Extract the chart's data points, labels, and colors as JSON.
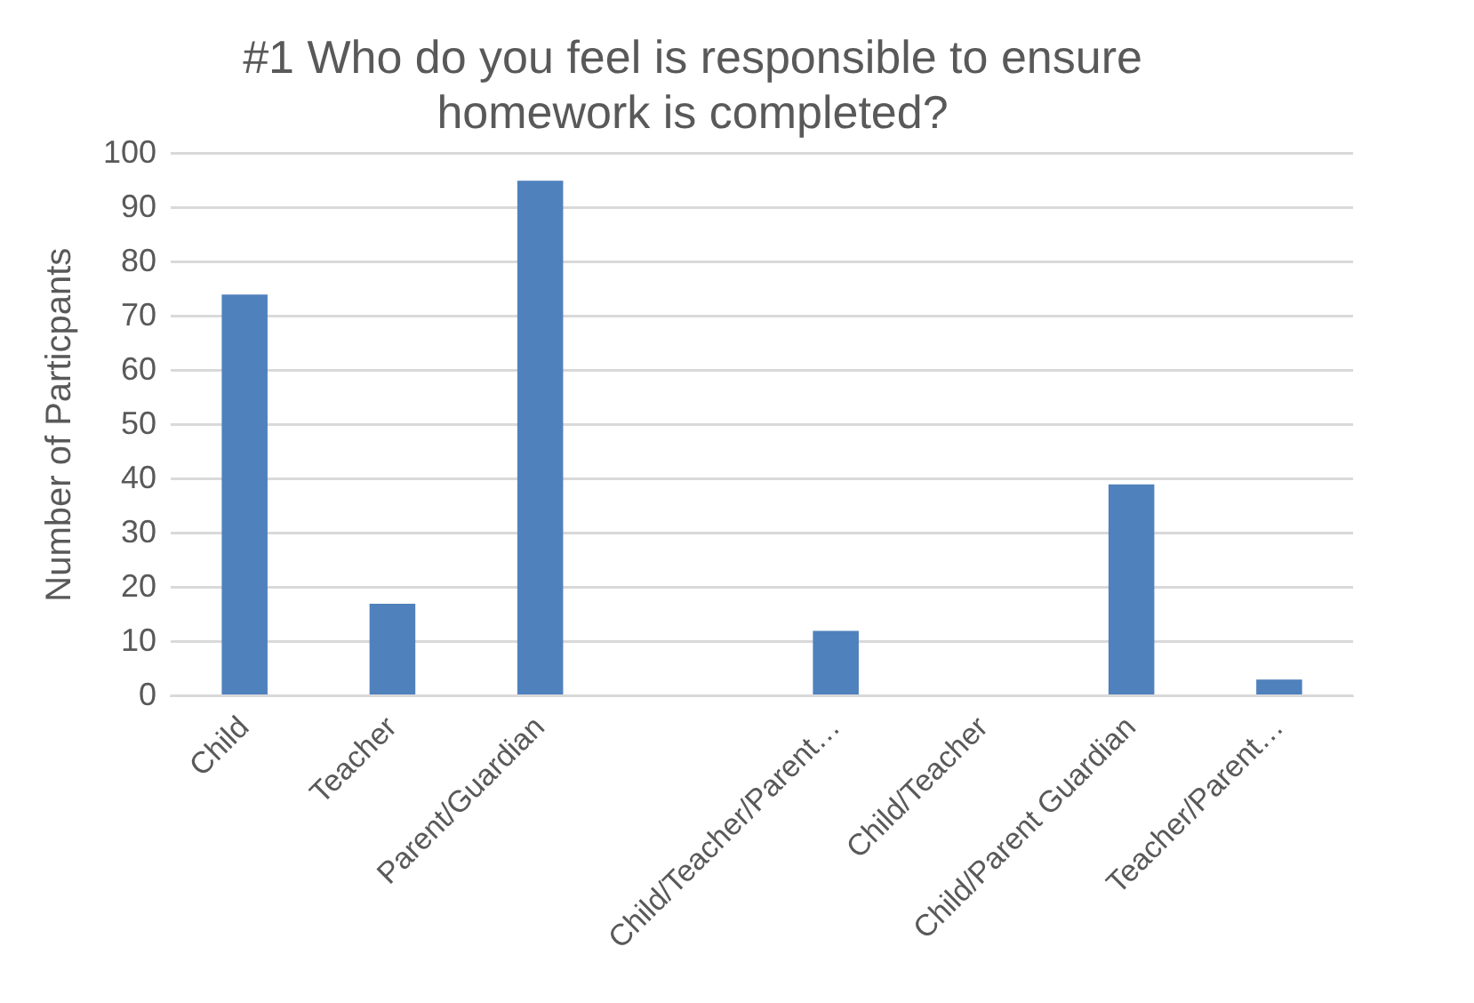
{
  "chart_data": {
    "type": "bar",
    "title": "#1 Who do you feel is responsible to ensure homework is completed?",
    "ylabel": "Number of Particpants",
    "categories": [
      "Child",
      "Teacher",
      "Parent/Guardian",
      null,
      "Child/Teacher/Parent…",
      "Child/Teacher",
      "Child/Parent Guardian",
      "Teacher/Parent…"
    ],
    "values": [
      74,
      17,
      95,
      0,
      12,
      0,
      39,
      3
    ],
    "color": "#4f81bd",
    "ylim": [
      0,
      100
    ],
    "yticks": [
      0,
      10,
      20,
      30,
      40,
      50,
      60,
      70,
      80,
      90,
      100
    ],
    "grid": "y",
    "legend": false
  }
}
